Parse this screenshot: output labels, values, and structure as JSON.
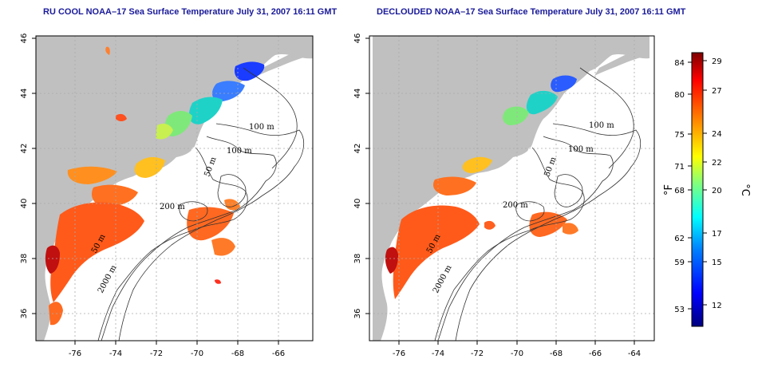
{
  "maps": [
    {
      "title": "RU COOL NOAA–17 Sea Surface Temperature July 31, 2007 16:11 GMT",
      "contour_labels": [
        "100 m",
        "100 m",
        "50 m",
        "200 m",
        "50 m",
        "2000 m"
      ]
    },
    {
      "title": "DECLOUDED NOAA–17 Sea Surface Temperature July 31, 2007 16:11 GMT",
      "contour_labels": [
        "100 m",
        "100 m",
        "50 m",
        "200 m",
        "50 m",
        "2000 m"
      ]
    }
  ],
  "axes": {
    "lon_ticks": [
      "-76",
      "-74",
      "-72",
      "-70",
      "-68",
      "-66",
      "-64"
    ],
    "lat_ticks": [
      "46",
      "44",
      "42",
      "40",
      "38",
      "36"
    ]
  },
  "colorbar": {
    "fahrenheit_unit": "°F",
    "celsius_unit": "°C",
    "fahrenheit_ticks": [
      "84",
      "80",
      "75",
      "71",
      "68",
      "62",
      "59",
      "53"
    ],
    "celsius_ticks": [
      "29",
      "27",
      "24",
      "22",
      "20",
      "17",
      "15",
      "12"
    ],
    "colors": [
      "#00007f",
      "#0000ff",
      "#007fff",
      "#00ffff",
      "#7fff7f",
      "#ffff00",
      "#ff7f00",
      "#ff0000",
      "#7f0000"
    ]
  },
  "colors": {
    "land": "#c0c0c0",
    "grid": "#aaaaaa",
    "title": "#1a1a9a"
  }
}
